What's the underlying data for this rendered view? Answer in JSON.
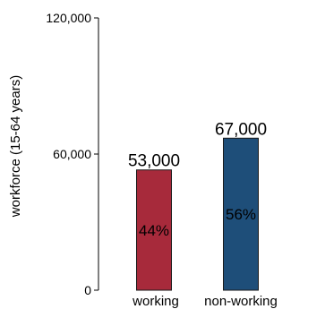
{
  "chart_data": {
    "type": "bar",
    "title": "",
    "xlabel": "",
    "ylabel": "workforce (15-64 years)",
    "ylim": [
      0,
      120000
    ],
    "yticks": [
      {
        "value": 0,
        "label": "0"
      },
      {
        "value": 60000,
        "label": "60,000"
      },
      {
        "value": 120000,
        "label": "120,000"
      }
    ],
    "grid": false,
    "legend": "none",
    "categories": [
      "working",
      "non-working"
    ],
    "values": [
      53000,
      67000
    ],
    "value_labels": [
      "53,000",
      "67,000"
    ],
    "percent_labels": [
      "44%",
      "56%"
    ],
    "colors": [
      "#a72a3b",
      "#1e4e79"
    ]
  }
}
